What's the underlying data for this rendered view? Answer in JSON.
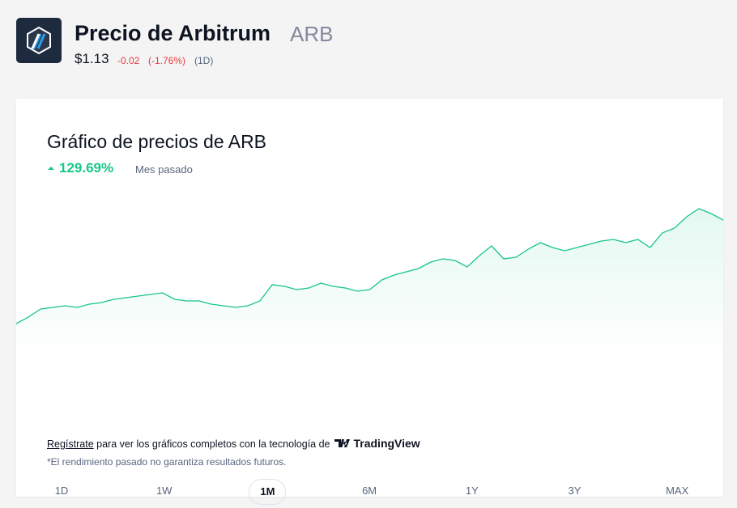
{
  "header": {
    "title": "Precio de Arbitrum",
    "symbol": "ARB",
    "price": "$1.13",
    "change": "-0.02",
    "change_pct": "(-1.76%)",
    "period": "(1D)"
  },
  "chart_data": {
    "type": "line",
    "title": "Gráfico de precios de ARB",
    "performance": "129.69%",
    "performance_label": "Mes pasado",
    "color": "#16c784",
    "values": [
      0.49,
      0.53,
      0.58,
      0.59,
      0.6,
      0.59,
      0.61,
      0.62,
      0.64,
      0.65,
      0.66,
      0.67,
      0.68,
      0.64,
      0.63,
      0.63,
      0.61,
      0.6,
      0.59,
      0.6,
      0.63,
      0.73,
      0.72,
      0.7,
      0.71,
      0.74,
      0.72,
      0.71,
      0.69,
      0.7,
      0.76,
      0.79,
      0.81,
      0.83,
      0.87,
      0.89,
      0.88,
      0.84,
      0.91,
      0.97,
      0.89,
      0.9,
      0.95,
      0.99,
      0.96,
      0.94,
      0.96,
      0.98,
      1.0,
      1.01,
      0.99,
      1.01,
      0.96,
      1.05,
      1.08,
      1.15,
      1.2,
      1.17,
      1.13
    ],
    "ylim": [
      0.29,
      1.23
    ]
  },
  "ranges": {
    "options": [
      "1D",
      "1W",
      "1M",
      "6M",
      "1Y",
      "3Y",
      "MAX"
    ],
    "selected": "1M"
  },
  "footer": {
    "link": "Regístrate",
    "text": "para ver los gráficos completos con la tecnología de",
    "brand": "TradingView",
    "disclaimer": "*El rendimiento pasado no garantiza resultados futuros."
  }
}
